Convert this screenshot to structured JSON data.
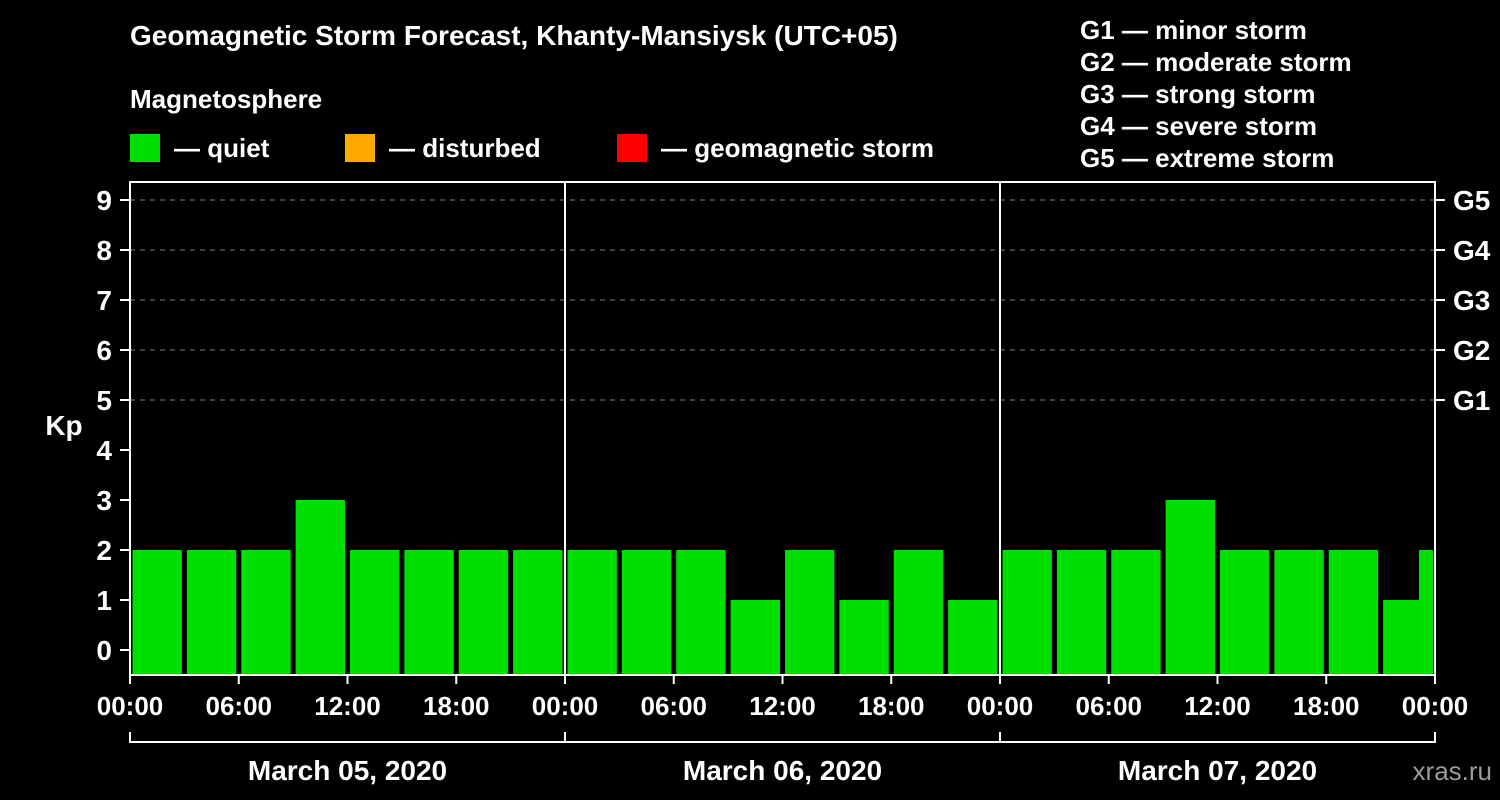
{
  "title": "Geomagnetic Storm Forecast, Khanty-Mansiysk (UTC+05)",
  "subtitle": "Magnetosphere",
  "legend": {
    "items": [
      {
        "name": "quiet",
        "label": "— quiet",
        "color": "#00e000"
      },
      {
        "name": "disturbed",
        "label": "— disturbed",
        "color": "#ffa800"
      },
      {
        "name": "geomagnetic-storm",
        "label": "— geomagnetic storm",
        "color": "#ff0000"
      }
    ]
  },
  "g_legend": [
    {
      "label": "G1 — minor storm"
    },
    {
      "label": "G2 — moderate storm"
    },
    {
      "label": "G3 — strong storm"
    },
    {
      "label": "G4 — severe storm"
    },
    {
      "label": "G5 — extreme storm"
    }
  ],
  "watermark": "xras.ru",
  "chart_data": {
    "type": "bar",
    "title": "Geomagnetic Storm Forecast, Khanty-Mansiysk (UTC+05)",
    "ylabel": "Kp",
    "ylim": [
      0,
      9.5
    ],
    "yticks": [
      0,
      1,
      2,
      3,
      4,
      5,
      6,
      7,
      8,
      9
    ],
    "gridlines_kp": [
      5,
      6,
      7,
      8,
      9
    ],
    "grid": "dashed",
    "right_labels": [
      {
        "kp": 5,
        "label": "G1"
      },
      {
        "kp": 6,
        "label": "G2"
      },
      {
        "kp": 7,
        "label": "G3"
      },
      {
        "kp": 8,
        "label": "G4"
      },
      {
        "kp": 9,
        "label": "G5"
      }
    ],
    "interval_hours": 3,
    "x_tick_labels": [
      "00:00",
      "06:00",
      "12:00",
      "18:00"
    ],
    "end_label": "00:00",
    "bar_color": "#00e000",
    "grid_color": "#7d7d7d",
    "axis_color": "#ffffff",
    "days": [
      {
        "date": "March 05, 2020",
        "values": [
          2,
          2,
          2,
          3,
          2,
          2,
          2,
          2
        ]
      },
      {
        "date": "March 06, 2020",
        "values": [
          2,
          2,
          2,
          1,
          2,
          1,
          2,
          1
        ]
      },
      {
        "date": "March 07, 2020",
        "values": [
          2,
          2,
          2,
          3,
          2,
          2,
          2,
          1
        ]
      }
    ],
    "partial_end_value": 2
  }
}
